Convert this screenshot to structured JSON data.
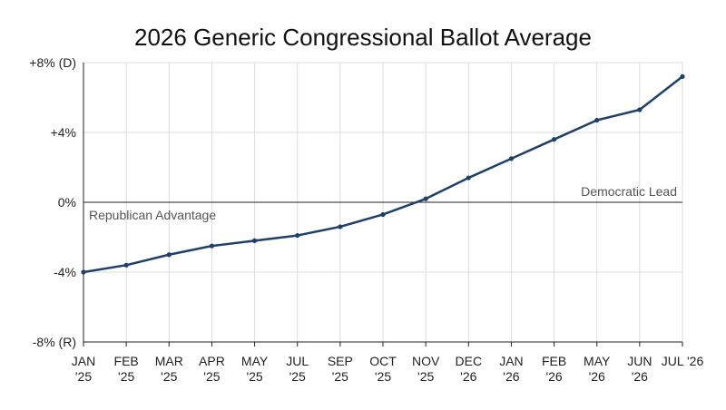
{
  "chart_data": {
    "type": "line",
    "title": "2026 Generic Congressional Ballot Average",
    "xlabel": "",
    "ylabel": "",
    "ylim": [
      -8,
      8
    ],
    "yticks": [
      {
        "value": 8,
        "label": "+8% (D)"
      },
      {
        "value": 4,
        "label": "+4%"
      },
      {
        "value": 0,
        "label": "0%"
      },
      {
        "value": -4,
        "label": "-4%"
      },
      {
        "value": -8,
        "label": "-8% (R)"
      }
    ],
    "categories": [
      [
        "JAN",
        "'25"
      ],
      [
        "FEB",
        "'25"
      ],
      [
        "MAR",
        "'25"
      ],
      [
        "APR",
        "'25"
      ],
      [
        "MAY",
        "'25"
      ],
      [
        "JUL",
        "'25"
      ],
      [
        "SEP",
        "'25"
      ],
      [
        "OCT",
        "'25"
      ],
      [
        "NOV",
        "'25"
      ],
      [
        "DEC",
        "'26"
      ],
      [
        "JAN",
        "'26"
      ],
      [
        "FEB",
        "'26"
      ],
      [
        "MAY",
        "'26"
      ],
      [
        "JUN",
        "'26"
      ],
      [
        "JUL '26",
        ""
      ]
    ],
    "series": [
      {
        "color": "#1f4068",
        "values": [
          -4.0,
          -3.6,
          -3.0,
          -2.5,
          -2.2,
          -1.9,
          -1.4,
          -0.7,
          0.2,
          1.4,
          2.5,
          3.6,
          4.7,
          5.3,
          7.2
        ]
      }
    ],
    "annotations": {
      "upper": "Democratic Lead",
      "lower": "Republican Advantage"
    },
    "grid": true
  }
}
